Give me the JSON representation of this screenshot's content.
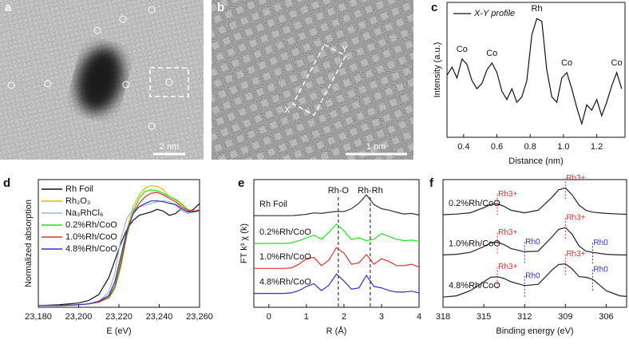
{
  "panels": {
    "a": {
      "label": "a",
      "scale_bar": "2 nm"
    },
    "b": {
      "label": "b",
      "scale_bar": "1 nm",
      "markers": [
        "X",
        "Y"
      ]
    }
  },
  "chart_data": [
    {
      "type": "line",
      "label": "c",
      "xlabel": "Distance (nm)",
      "ylabel": "Intensity (a.u.)",
      "xlim": [
        0.3,
        1.37
      ],
      "ylim": [
        1,
        11
      ],
      "xticks": [
        0.4,
        0.6,
        0.8,
        {
          "value": 1,
          "label": "1.0"
        },
        1.2
      ],
      "x": [
        0.3,
        0.33,
        0.36,
        0.39,
        0.42,
        0.45,
        0.48,
        0.51,
        0.54,
        0.57,
        0.6,
        0.63,
        0.66,
        0.69,
        0.72,
        0.75,
        0.78,
        0.81,
        0.84,
        0.87,
        0.9,
        0.93,
        0.96,
        0.99,
        1.02,
        1.05,
        1.08,
        1.11,
        1.14,
        1.17,
        1.2,
        1.23,
        1.26,
        1.29,
        1.32,
        1.35
      ],
      "series": [
        {
          "name": "X-Y profile",
          "color": "#111111",
          "values": [
            5.6,
            6.2,
            5.4,
            6.8,
            6.4,
            5.2,
            4.6,
            5.0,
            6.0,
            6.5,
            5.8,
            4.4,
            3.8,
            4.6,
            3.6,
            4.0,
            5.2,
            8.6,
            9.8,
            9.6,
            6.0,
            4.0,
            3.6,
            5.4,
            5.8,
            4.6,
            3.2,
            2.0,
            3.4,
            3.0,
            3.8,
            2.6,
            3.6,
            4.8,
            5.8,
            4.6
          ]
        }
      ],
      "annotations": [
        {
          "text": "Co",
          "x": 0.39
        },
        {
          "text": "Co",
          "x": 0.57
        },
        {
          "text": "Rh",
          "x": 0.84
        },
        {
          "text": "Co",
          "x": 1.02
        },
        {
          "text": "Co",
          "x": 1.32
        }
      ]
    },
    {
      "type": "line",
      "label": "d",
      "xlabel": "E (eV)",
      "ylabel": "Normalized absorption",
      "xlim": [
        23180,
        23260
      ],
      "ylim": [
        0,
        1.5
      ],
      "xticks": [
        {
          "value": 23180,
          "label": "23,180"
        },
        {
          "value": 23200,
          "label": "23,200"
        },
        {
          "value": 23220,
          "label": "23,220"
        },
        {
          "value": 23240,
          "label": "23,240"
        },
        {
          "value": 23260,
          "label": "23,260"
        }
      ],
      "legend": "upper-left",
      "x": [
        23180,
        23190,
        23200,
        23205,
        23210,
        23215,
        23218,
        23221,
        23224,
        23227,
        23230,
        23233,
        23236,
        23239,
        23242,
        23245,
        23248,
        23251,
        23254,
        23257,
        23260
      ],
      "series": [
        {
          "name": "Rh Foil",
          "color": "#111111",
          "values": [
            0.02,
            0.03,
            0.05,
            0.08,
            0.15,
            0.35,
            0.55,
            0.75,
            0.92,
            1.02,
            1.08,
            1.1,
            1.12,
            1.15,
            1.13,
            1.08,
            1.1,
            1.16,
            1.12,
            1.15,
            1.22
          ]
        },
        {
          "name": "Rh₂O₃",
          "color": "#e6b800",
          "values": [
            0.02,
            0.02,
            0.03,
            0.04,
            0.06,
            0.12,
            0.25,
            0.55,
            0.92,
            1.18,
            1.32,
            1.4,
            1.43,
            1.42,
            1.38,
            1.3,
            1.26,
            1.2,
            1.15,
            1.13,
            1.14
          ]
        },
        {
          "name": "Na₃RhCl₆",
          "color": "#8fb8e6",
          "values": [
            0.02,
            0.02,
            0.03,
            0.04,
            0.07,
            0.18,
            0.4,
            0.8,
            1.05,
            1.15,
            1.18,
            1.2,
            1.22,
            1.24,
            1.25,
            1.24,
            1.2,
            1.14,
            1.1,
            1.12,
            1.15
          ]
        },
        {
          "name": "0.2%Rh/CoO",
          "color": "#22dd22",
          "values": [
            0.02,
            0.02,
            0.03,
            0.04,
            0.06,
            0.11,
            0.22,
            0.48,
            0.85,
            1.12,
            1.28,
            1.36,
            1.38,
            1.37,
            1.34,
            1.3,
            1.27,
            1.22,
            1.15,
            1.12,
            1.13
          ]
        },
        {
          "name": "1.0%Rh/CoO",
          "color": "#e03030",
          "values": [
            0.02,
            0.02,
            0.03,
            0.04,
            0.06,
            0.12,
            0.25,
            0.52,
            0.88,
            1.1,
            1.22,
            1.3,
            1.34,
            1.35,
            1.32,
            1.28,
            1.24,
            1.18,
            1.14,
            1.13,
            1.14
          ]
        },
        {
          "name": "4.8%Rh/CoO",
          "color": "#3030c0",
          "values": [
            0.02,
            0.02,
            0.03,
            0.04,
            0.07,
            0.14,
            0.3,
            0.6,
            0.9,
            1.1,
            1.18,
            1.22,
            1.25,
            1.25,
            1.24,
            1.22,
            1.21,
            1.16,
            1.12,
            1.12,
            1.14
          ]
        }
      ]
    },
    {
      "type": "line",
      "label": "e",
      "xlabel": "R (Å)",
      "ylabel": "FT k³ χ (k)",
      "xlim": [
        -0.4,
        4
      ],
      "ylim": [
        0,
        4.6
      ],
      "xticks": [
        0,
        1,
        2,
        3,
        4
      ],
      "reference_lines": [
        {
          "label": "Rh-O",
          "x": 1.85
        },
        {
          "label": "Rh-Rh",
          "x": 2.7
        }
      ],
      "x": [
        -0.4,
        -0.2,
        0,
        0.2,
        0.4,
        0.6,
        0.8,
        1.0,
        1.2,
        1.4,
        1.6,
        1.8,
        2.0,
        2.2,
        2.4,
        2.6,
        2.8,
        3.0,
        3.2,
        3.4,
        3.6,
        3.8,
        4.0
      ],
      "series": [
        {
          "name": "Rh Foil",
          "color": "#333333",
          "values": [
            3.3,
            3.3,
            3.3,
            3.3,
            3.3,
            3.3,
            3.32,
            3.35,
            3.4,
            3.38,
            3.42,
            3.45,
            3.45,
            3.55,
            3.75,
            4.05,
            3.7,
            3.55,
            3.5,
            3.42,
            3.36,
            3.38,
            3.32
          ]
        },
        {
          "name": "0.2%Rh/CoO",
          "color": "#22dd22",
          "values": [
            2.3,
            2.3,
            2.3,
            2.3,
            2.3,
            2.32,
            2.4,
            2.5,
            2.6,
            2.45,
            2.7,
            3.0,
            2.75,
            2.45,
            2.5,
            2.4,
            2.45,
            2.65,
            2.55,
            2.45,
            2.4,
            2.42,
            2.38
          ]
        },
        {
          "name": "1.0%Rh/CoO",
          "color": "#e03030",
          "values": [
            1.4,
            1.4,
            1.4,
            1.4,
            1.4,
            1.42,
            1.55,
            1.75,
            1.8,
            1.5,
            1.7,
            2.15,
            1.95,
            1.55,
            1.6,
            1.9,
            1.55,
            1.75,
            1.65,
            1.5,
            1.5,
            1.55,
            1.45
          ]
        },
        {
          "name": "4.8%Rh/CoO",
          "color": "#3030c0",
          "values": [
            0.5,
            0.5,
            0.5,
            0.5,
            0.5,
            0.52,
            0.6,
            0.75,
            0.85,
            0.6,
            0.8,
            1.2,
            0.95,
            0.65,
            0.7,
            1.15,
            0.75,
            0.7,
            0.6,
            0.55,
            0.55,
            0.58,
            0.52
          ]
        }
      ]
    },
    {
      "type": "line",
      "label": "f",
      "xlabel": "Binding energy (eV)",
      "xlim": [
        318,
        304.5
      ],
      "ylim": [
        0,
        10
      ],
      "xticks": [
        318,
        315,
        312,
        309,
        306
      ],
      "x": [
        318,
        317,
        316,
        315,
        314.5,
        314,
        313.5,
        313,
        312,
        311,
        310,
        309.5,
        309,
        308.5,
        308,
        307.5,
        307,
        306,
        305,
        304.5
      ],
      "series": [
        {
          "name": "0.2%Rh/CoO",
          "color": "#222222",
          "values": [
            7.25,
            7.3,
            7.4,
            7.8,
            8.05,
            8.1,
            7.9,
            7.6,
            7.4,
            7.6,
            8.6,
            9.2,
            9.35,
            8.8,
            8.0,
            7.6,
            7.45,
            7.35,
            7.3,
            7.28
          ],
          "peaks": [
            {
              "label": "Rh3+",
              "x": 314,
              "color": "#e03030"
            },
            {
              "label": "Rh3+",
              "x": 309,
              "color": "#e03030"
            }
          ]
        },
        {
          "name": "1.0%Rh/CoO",
          "color": "#222222",
          "values": [
            4.1,
            4.15,
            4.3,
            4.75,
            5.05,
            5.1,
            4.9,
            4.6,
            4.35,
            4.4,
            5.5,
            6.1,
            6.25,
            5.7,
            4.8,
            4.4,
            4.3,
            4.15,
            4.1,
            4.1
          ],
          "peaks": [
            {
              "label": "Rh3+",
              "x": 314,
              "color": "#e03030"
            },
            {
              "label": "Rh0",
              "x": 312,
              "color": "#3030c0"
            },
            {
              "label": "Rh3+",
              "x": 309,
              "color": "#e03030"
            },
            {
              "label": "Rh0",
              "x": 307,
              "color": "#3030c0"
            }
          ]
        },
        {
          "name": "4.8%Rh/CoO",
          "color": "#222222",
          "values": [
            0.8,
            0.9,
            1.3,
            2.0,
            2.35,
            2.4,
            2.25,
            2.0,
            1.7,
            1.8,
            2.9,
            3.35,
            3.4,
            3.0,
            2.4,
            2.35,
            2.2,
            1.3,
            0.9,
            0.85
          ],
          "peaks": [
            {
              "label": "Rh3+",
              "x": 314,
              "color": "#e03030"
            },
            {
              "label": "Rh0",
              "x": 312,
              "color": "#3030c0"
            },
            {
              "label": "Rh3+",
              "x": 309,
              "color": "#e03030"
            },
            {
              "label": "Rh0",
              "x": 307,
              "color": "#3030c0"
            }
          ]
        }
      ]
    }
  ]
}
